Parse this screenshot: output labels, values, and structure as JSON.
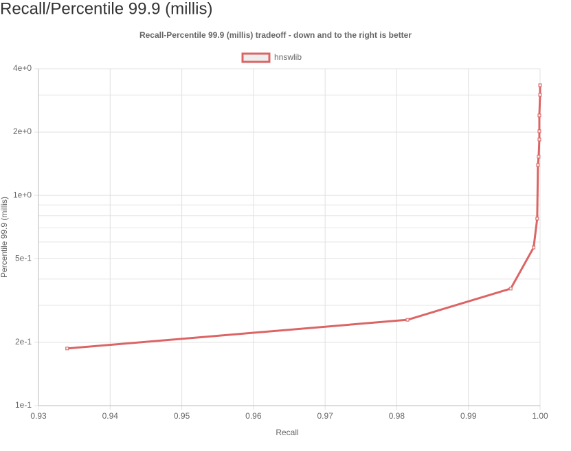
{
  "heading": "Recall/Percentile 99.9 (millis)",
  "chart_data": {
    "type": "line",
    "title": "Recall-Percentile 99.9 (millis) tradeoff - down and to the right is better",
    "x_label": "Recall",
    "y_label": "Percentile 99.9 (millis)",
    "y_scale": "log",
    "grid": true,
    "legend": "top",
    "xlim": [
      0.93,
      1.0
    ],
    "xticks": [
      0.93,
      0.94,
      0.95,
      0.96,
      0.97,
      0.98,
      0.99,
      {
        "value": 1.0,
        "label": "1.00"
      }
    ],
    "ylim": [
      0.1,
      4
    ],
    "yticks": [
      {
        "value": 0.1,
        "label": "1e-1"
      },
      {
        "value": 0.2,
        "label": "2e-1"
      },
      {
        "value": 0.5,
        "label": "5e-1"
      },
      {
        "value": 1,
        "label": "1e+0"
      },
      {
        "value": 2,
        "label": "2e+0"
      },
      {
        "value": 4,
        "label": "4e+0"
      }
    ],
    "yminor": [
      0.3,
      0.4,
      0.6,
      0.7,
      0.8,
      0.9,
      3
    ],
    "series": [
      {
        "name": "hnswlib",
        "color": "#dc6464",
        "x": [
          0.934,
          0.9815,
          0.9959,
          0.9991,
          0.9996,
          0.9997,
          0.9998,
          0.9999,
          0.9999,
          0.9999,
          1.0,
          1.0
        ],
        "values": [
          0.187,
          0.256,
          0.36,
          0.565,
          0.775,
          1.394,
          1.527,
          1.843,
          2.018,
          2.399,
          3.006,
          3.34
        ]
      }
    ]
  }
}
